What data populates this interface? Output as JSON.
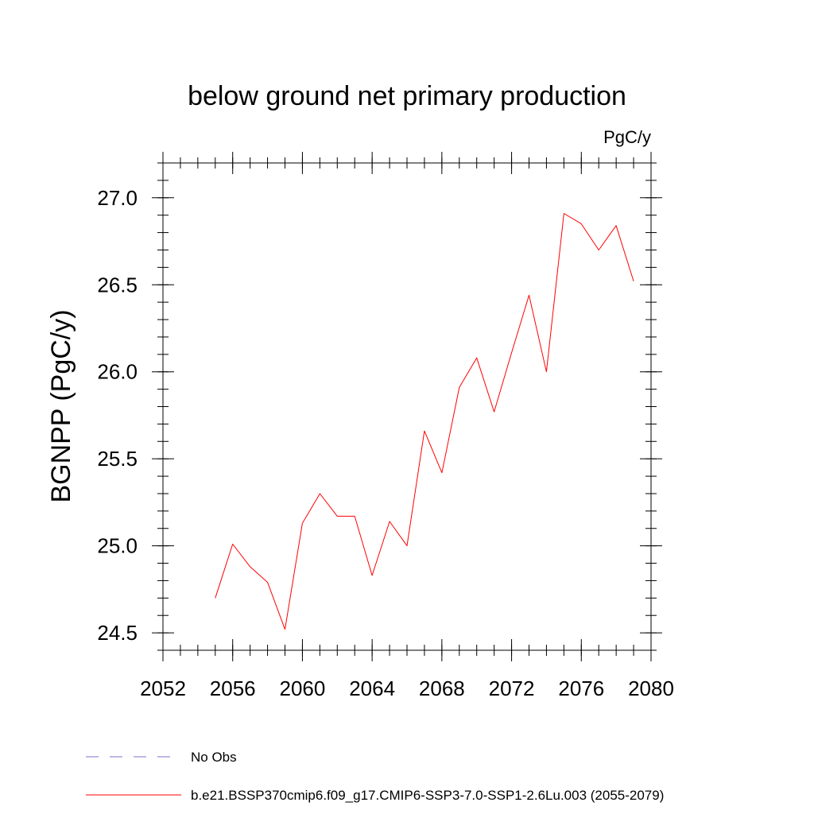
{
  "chart_data": {
    "type": "line",
    "title": "below ground net primary production",
    "units_label": "PgC/y",
    "ylabel": "BGNPP  (PgC/y)",
    "xlabel": "",
    "xlim": [
      2052,
      2080
    ],
    "ylim": [
      24.4,
      27.2
    ],
    "x_major_ticks": [
      2052,
      2056,
      2060,
      2064,
      2068,
      2072,
      2076,
      2080
    ],
    "x_tick_labels": [
      "2052",
      "2056",
      "2060",
      "2064",
      "2068",
      "2072",
      "2076",
      "2080"
    ],
    "x_minor_step": 1,
    "y_major_ticks": [
      24.5,
      25.0,
      25.5,
      26.0,
      26.5,
      27.0
    ],
    "y_tick_labels": [
      "24.5",
      "25.0",
      "25.5",
      "26.0",
      "26.5",
      "27.0"
    ],
    "y_minor_step": 0.1,
    "grid": false,
    "legend_placement": "bottom-left",
    "series": [
      {
        "name": "b.e21.BSSP370cmip6.f09_g17.CMIP6-SSP3-7.0-SSP1-2.6Lu.003 (2055-2079)",
        "color": "#ff0000",
        "x": [
          2055,
          2056,
          2057,
          2058,
          2059,
          2060,
          2061,
          2062,
          2063,
          2064,
          2065,
          2066,
          2067,
          2068,
          2069,
          2070,
          2071,
          2072,
          2073,
          2074,
          2075,
          2076,
          2077,
          2078,
          2079
        ],
        "values": [
          24.7,
          25.01,
          24.88,
          24.79,
          24.52,
          25.13,
          25.3,
          25.17,
          25.17,
          24.83,
          25.14,
          25.0,
          25.66,
          25.42,
          25.91,
          26.08,
          25.77,
          26.11,
          26.44,
          26.0,
          26.91,
          26.85,
          26.7,
          26.84,
          26.52
        ]
      }
    ],
    "legend": [
      {
        "label": "No Obs",
        "style": "dashed",
        "color": "#7b72c8"
      },
      {
        "label": "b.e21.BSSP370cmip6.f09_g17.CMIP6-SSP3-7.0-SSP1-2.6Lu.003 (2055-2079)",
        "style": "solid",
        "color": "#ff0000"
      }
    ]
  }
}
